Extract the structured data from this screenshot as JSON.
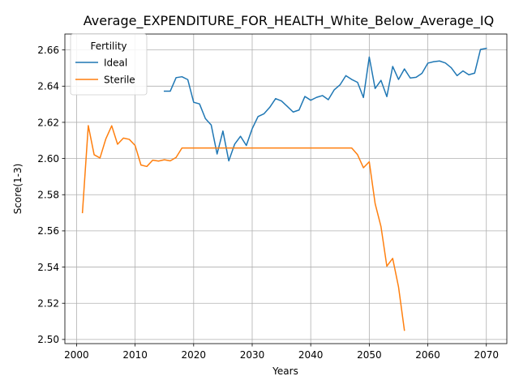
{
  "chart_data": {
    "type": "line",
    "title": "Average_EXPENDITURE_FOR_HEALTH_White_Below_Average_IQ",
    "xlabel": "Years",
    "ylabel": "Score(1-3)",
    "xlim": [
      1998,
      2073.5
    ],
    "ylim": [
      2.4977,
      2.6688
    ],
    "xticks": [
      2000,
      2010,
      2020,
      2030,
      2040,
      2050,
      2060,
      2070
    ],
    "xtick_labels": [
      "2000",
      "2010",
      "2020",
      "2030",
      "2040",
      "2050",
      "2060",
      "2070"
    ],
    "yticks": [
      2.5,
      2.52,
      2.54,
      2.56,
      2.58,
      2.6,
      2.62,
      2.64,
      2.66
    ],
    "ytick_labels": [
      "2.50",
      "2.52",
      "2.54",
      "2.56",
      "2.58",
      "2.60",
      "2.62",
      "2.64",
      "2.66"
    ],
    "grid": true,
    "legend": {
      "title": "Fertility",
      "location": "top-left"
    },
    "series": [
      {
        "name": "Ideal",
        "color": "#1f77b4",
        "x": [
          2015,
          2016,
          2017,
          2018,
          2019,
          2020,
          2021,
          2022,
          2023,
          2024,
          2025,
          2026,
          2027,
          2028,
          2029,
          2030,
          2031,
          2032,
          2033,
          2034,
          2035,
          2036,
          2037,
          2038,
          2039,
          2040,
          2041,
          2042,
          2043,
          2044,
          2045,
          2046,
          2047,
          2048,
          2049,
          2050,
          2051,
          2052,
          2053,
          2054,
          2055,
          2056,
          2057,
          2058,
          2059,
          2060,
          2061,
          2062,
          2063,
          2064,
          2065,
          2066,
          2067,
          2068,
          2069,
          2070
        ],
        "y": [
          2.6372,
          2.6372,
          2.6447,
          2.6452,
          2.6436,
          2.6311,
          2.6302,
          2.6221,
          2.6185,
          2.6025,
          2.6152,
          2.5987,
          2.6079,
          2.6123,
          2.6072,
          2.6165,
          2.6232,
          2.6247,
          2.6283,
          2.6331,
          2.6318,
          2.6288,
          2.6257,
          2.6268,
          2.6343,
          2.6322,
          2.6338,
          2.6348,
          2.6325,
          2.6379,
          2.6407,
          2.6458,
          2.6437,
          2.6421,
          2.6337,
          2.6561,
          2.6387,
          2.6432,
          2.6342,
          2.6509,
          2.6437,
          2.6495,
          2.6445,
          2.6449,
          2.6471,
          2.6527,
          2.6535,
          2.6539,
          2.6528,
          2.6502,
          2.6458,
          2.6484,
          2.6463,
          2.6472,
          2.6603,
          2.6609
        ]
      },
      {
        "name": "Sterile",
        "color": "#ff7f0e",
        "x": [
          2001,
          2002,
          2003,
          2004,
          2005,
          2006,
          2007,
          2008,
          2009,
          2010,
          2011,
          2012,
          2013,
          2014,
          2015,
          2016,
          2017,
          2018,
          2019,
          2020,
          2021,
          2022,
          2023,
          2024,
          2025,
          2026,
          2027,
          2028,
          2029,
          2030,
          2031,
          2032,
          2033,
          2034,
          2035,
          2036,
          2037,
          2038,
          2039,
          2040,
          2041,
          2042,
          2043,
          2044,
          2045,
          2046,
          2047,
          2048,
          2049,
          2050,
          2051,
          2052,
          2053,
          2054,
          2055,
          2056
        ],
        "y": [
          2.5701,
          2.6182,
          2.6021,
          2.6003,
          2.6109,
          2.6181,
          2.6079,
          2.6113,
          2.6106,
          2.6072,
          2.5964,
          2.5956,
          2.5991,
          2.5986,
          2.5993,
          2.5987,
          2.6006,
          2.6058,
          2.6058,
          2.6058,
          2.6058,
          2.6058,
          2.6058,
          2.6058,
          2.6058,
          2.6058,
          2.6058,
          2.6058,
          2.6058,
          2.6058,
          2.6058,
          2.6058,
          2.6058,
          2.6058,
          2.6058,
          2.6058,
          2.6058,
          2.6058,
          2.6058,
          2.6058,
          2.6058,
          2.6058,
          2.6058,
          2.6058,
          2.6058,
          2.6058,
          2.6058,
          2.6021,
          2.5949,
          2.5982,
          2.5751,
          2.5624,
          2.5405,
          2.5448,
          2.529,
          2.5051
        ]
      }
    ]
  }
}
